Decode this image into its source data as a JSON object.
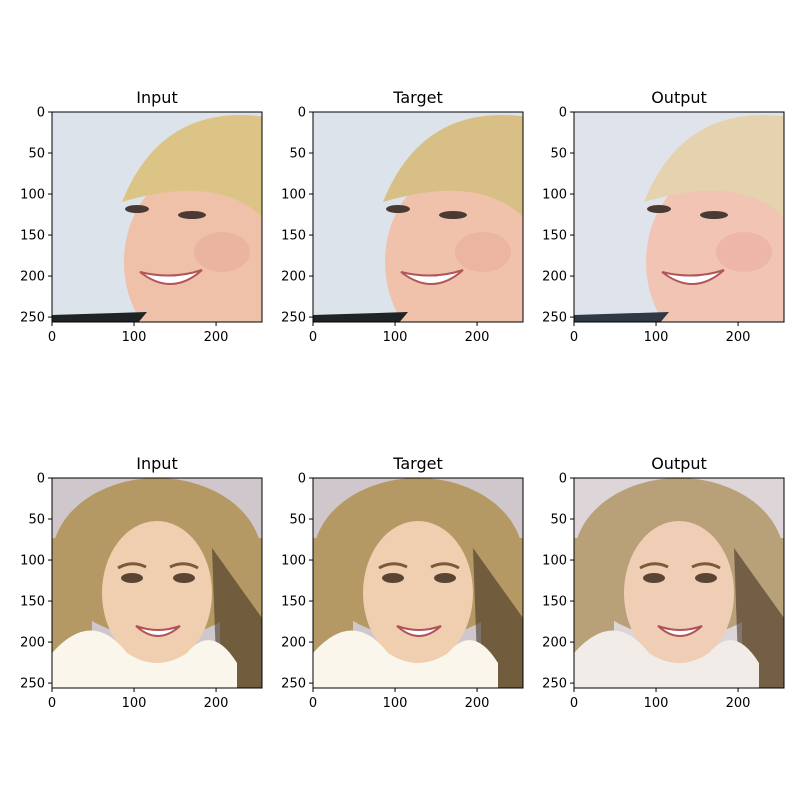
{
  "figure": {
    "panels": [
      {
        "title": "Input",
        "image": "face-1-input",
        "palette": {
          "bg": "#dde3ea",
          "hair": "#dcc487",
          "skin": "#efc1a8",
          "cloth": "#202326"
        }
      },
      {
        "title": "Target",
        "image": "face-1-target",
        "palette": {
          "bg": "#dde3ea",
          "hair": "#d8bf86",
          "skin": "#f0c2ab",
          "cloth": "#202326"
        }
      },
      {
        "title": "Output",
        "image": "face-1-output",
        "palette": {
          "bg": "#dfe4ec",
          "hair": "#e4d3ae",
          "skin": "#f1c4b4",
          "cloth": "#2f3945"
        }
      },
      {
        "title": "Input",
        "image": "face-2-input",
        "palette": {
          "bg": "#cfc7cc",
          "hair": "#b49964",
          "skin": "#f0cfb1",
          "cloth": "#fbf6ec"
        }
      },
      {
        "title": "Target",
        "image": "face-2-target",
        "palette": {
          "bg": "#cfc7cc",
          "hair": "#b49964",
          "skin": "#f0cfb1",
          "cloth": "#fbf6ec"
        }
      },
      {
        "title": "Output",
        "image": "face-2-output",
        "palette": {
          "bg": "#ddd5d8",
          "hair": "#b8a078",
          "skin": "#f0cdb5",
          "cloth": "#f1ece7"
        }
      }
    ],
    "axis": {
      "x_ticks": [
        "0",
        "100",
        "200"
      ],
      "x_tick_values": [
        0,
        100,
        200
      ],
      "y_ticks": [
        "0",
        "50",
        "100",
        "150",
        "200",
        "250"
      ],
      "y_tick_values": [
        0,
        50,
        100,
        150,
        200,
        250
      ],
      "extent": [
        0,
        256
      ]
    }
  }
}
